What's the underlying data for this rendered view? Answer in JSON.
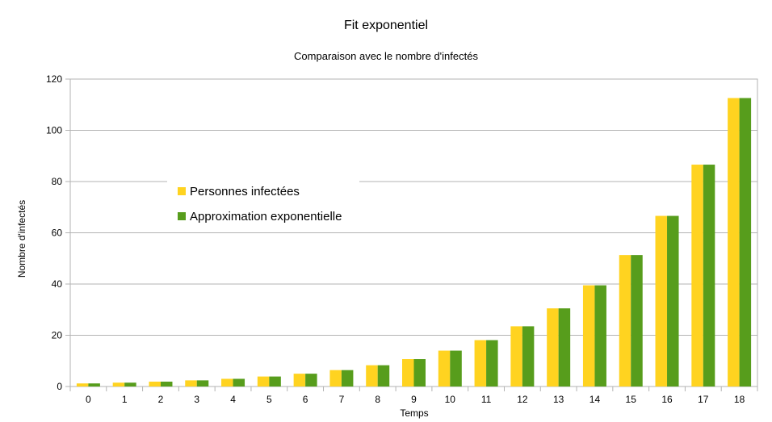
{
  "chart_data": {
    "type": "bar",
    "title": "Fit exponentiel",
    "subtitle": "Comparaison avec le nombre d'infectés",
    "xlabel": "Temps",
    "ylabel": "Nombre d'infectés",
    "ylim": [
      0,
      120
    ],
    "yticks": [
      "0",
      "20",
      "40",
      "60",
      "80",
      "100",
      "120"
    ],
    "grid": true,
    "legend_position": "left",
    "categories": [
      "0",
      "1",
      "2",
      "3",
      "4",
      "5",
      "6",
      "7",
      "8",
      "9",
      "10",
      "11",
      "12",
      "13",
      "14",
      "15",
      "16",
      "17",
      "18"
    ],
    "series": [
      {
        "name": "Personnes infectées",
        "color": "#ffd320",
        "values": [
          1.2,
          1.5,
          1.9,
          2.4,
          3.0,
          3.9,
          5.0,
          6.4,
          8.3,
          10.7,
          14.0,
          18.1,
          23.5,
          30.5,
          39.5,
          51.3,
          66.6,
          86.6,
          112.6
        ]
      },
      {
        "name": "Approximation exponentielle",
        "color": "#579d1c",
        "values": [
          1.2,
          1.5,
          1.9,
          2.4,
          3.0,
          3.9,
          5.0,
          6.4,
          8.3,
          10.7,
          14.0,
          18.1,
          23.5,
          30.5,
          39.5,
          51.3,
          66.6,
          86.6,
          112.6
        ]
      }
    ]
  }
}
